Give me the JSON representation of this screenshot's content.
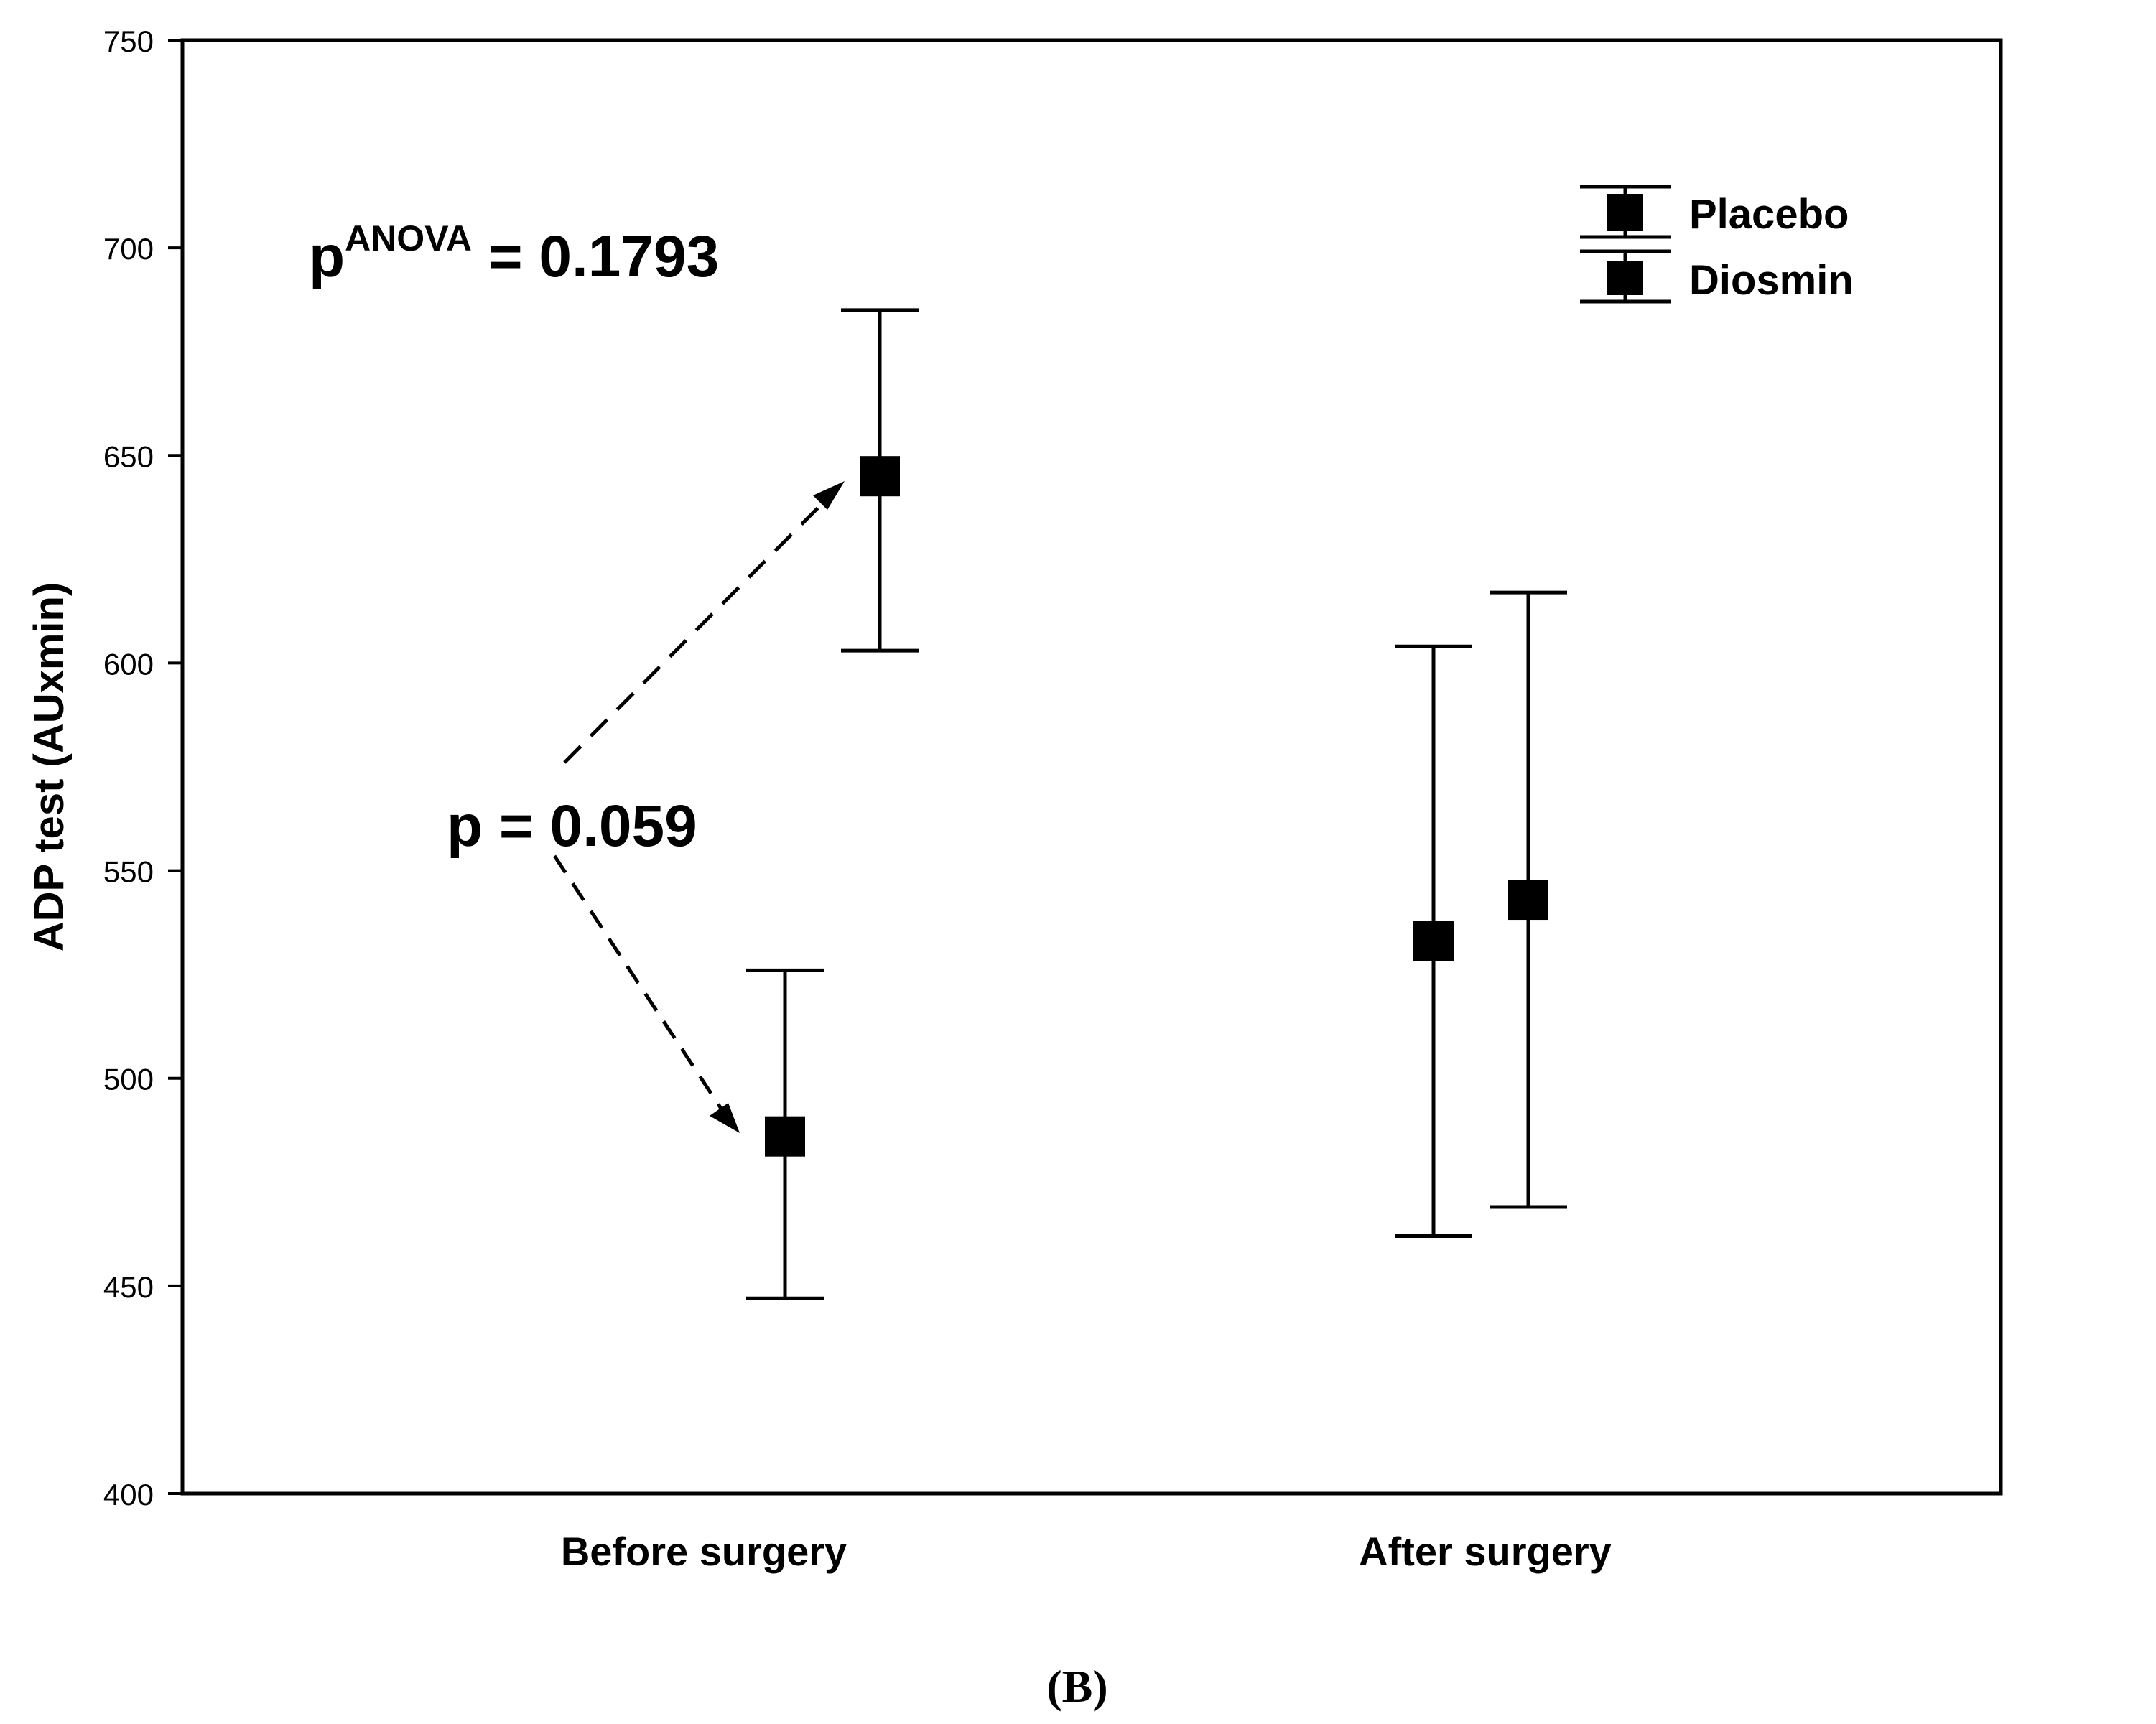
{
  "chart_data": {
    "type": "scatter",
    "subtype": "error-bar",
    "ylabel": "ADP test (AUxmin)",
    "xlabel": "",
    "ylim": [
      400,
      750
    ],
    "yticks": [
      400,
      450,
      500,
      550,
      600,
      650,
      700,
      750
    ],
    "ytick_labels": [
      "400",
      "450",
      "500",
      "550",
      "600",
      "650",
      "700",
      "750"
    ],
    "categories": [
      "Before surgery",
      "After surgery"
    ],
    "series": [
      {
        "name": "Placebo",
        "color": "#000000",
        "values": [
          486,
          533
        ],
        "lower": [
          447,
          462
        ],
        "upper": [
          526,
          604
        ]
      },
      {
        "name": "Diosmin",
        "color": "#000000",
        "values": [
          645,
          543
        ],
        "lower": [
          603,
          469
        ],
        "upper": [
          685,
          617
        ]
      }
    ],
    "legend": {
      "placement": "top-right",
      "items": [
        "Placebo",
        "Diosmin"
      ]
    },
    "annotations": {
      "anova_prefix": "p",
      "anova_superscript": "ANOVA",
      "anova_value": " = 0.1793",
      "pairwise": "p = 0.059"
    },
    "panel_label": "(B)",
    "grid": false
  }
}
